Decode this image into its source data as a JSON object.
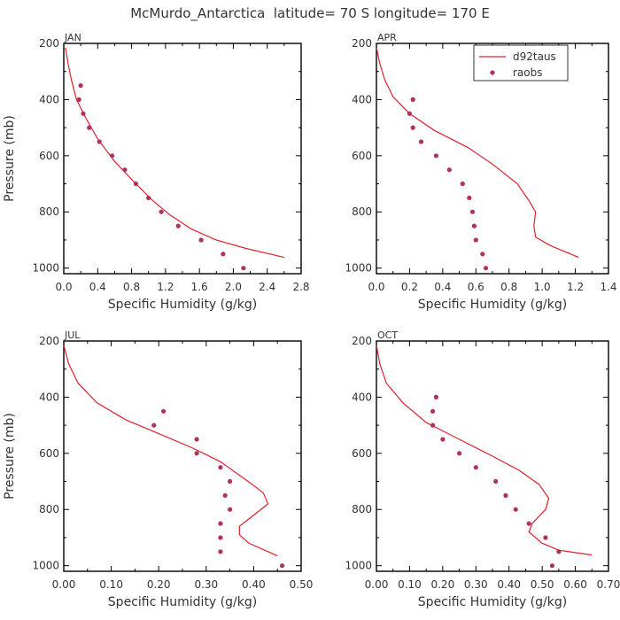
{
  "figure": {
    "title": "McMurdo_Antarctica  latitude= 70 S longitude= 170 E",
    "colors": {
      "model": "#e0202a",
      "obs": "#b03060",
      "frame": "#000000",
      "text": "#333333"
    }
  },
  "chart_data": [
    {
      "type": "line",
      "panel": "JAN",
      "title": "JAN",
      "xlabel": "Specific Humidity (g/kg)",
      "ylabel": "Pressure (mb)",
      "xlim": [
        0,
        2.8
      ],
      "ylim": [
        200,
        1020
      ],
      "y_inverted": true,
      "xticks": [
        "0.0",
        "0.4",
        "0.8",
        "1.2",
        "1.6",
        "2.0",
        "2.4",
        "2.8"
      ],
      "xtick_values": [
        0,
        0.4,
        0.8,
        1.2,
        1.6,
        2.0,
        2.4,
        2.8
      ],
      "yticks": [
        "200",
        "400",
        "600",
        "800",
        "1000"
      ],
      "ytick_values": [
        200,
        400,
        600,
        800,
        1000
      ],
      "legend": null,
      "series": [
        {
          "name": "d92taus",
          "kind": "line",
          "points": [
            [
              0.02,
              215
            ],
            [
              0.05,
              270
            ],
            [
              0.09,
              330
            ],
            [
              0.15,
              400
            ],
            [
              0.25,
              460
            ],
            [
              0.4,
              540
            ],
            [
              0.6,
              620
            ],
            [
              0.85,
              700
            ],
            [
              1.05,
              760
            ],
            [
              1.25,
              810
            ],
            [
              1.5,
              860
            ],
            [
              1.8,
              900
            ],
            [
              2.15,
              930
            ],
            [
              2.6,
              962
            ]
          ]
        },
        {
          "name": "raobs",
          "kind": "scatter",
          "points": [
            [
              0.2,
              350
            ],
            [
              0.18,
              400
            ],
            [
              0.23,
              450
            ],
            [
              0.3,
              500
            ],
            [
              0.42,
              550
            ],
            [
              0.57,
              600
            ],
            [
              0.72,
              650
            ],
            [
              0.85,
              700
            ],
            [
              1.0,
              750
            ],
            [
              1.15,
              800
            ],
            [
              1.35,
              850
            ],
            [
              1.62,
              900
            ],
            [
              1.88,
              950
            ],
            [
              2.12,
              1000
            ]
          ]
        }
      ]
    },
    {
      "type": "line",
      "panel": "APR",
      "title": "APR",
      "xlabel": "Specific Humidity (g/kg)",
      "ylabel": "",
      "xlim": [
        0,
        1.4
      ],
      "ylim": [
        200,
        1020
      ],
      "y_inverted": true,
      "xticks": [
        "0.0",
        "0.2",
        "0.4",
        "0.6",
        "0.8",
        "1.0",
        "1.2",
        "1.4"
      ],
      "xtick_values": [
        0,
        0.2,
        0.4,
        0.6,
        0.8,
        1.0,
        1.2,
        1.4
      ],
      "yticks": [
        "200",
        "400",
        "600",
        "800",
        "1000"
      ],
      "ytick_values": [
        200,
        400,
        600,
        800,
        1000
      ],
      "legend": {
        "placement": "top-right",
        "entries": [
          "d92taus",
          "raobs"
        ]
      },
      "series": [
        {
          "name": "d92taus",
          "kind": "line",
          "points": [
            [
              0.0,
              215
            ],
            [
              0.02,
              270
            ],
            [
              0.05,
              330
            ],
            [
              0.1,
              390
            ],
            [
              0.2,
              450
            ],
            [
              0.35,
              510
            ],
            [
              0.55,
              570
            ],
            [
              0.7,
              630
            ],
            [
              0.85,
              700
            ],
            [
              0.92,
              760
            ],
            [
              0.96,
              800
            ],
            [
              0.95,
              850
            ],
            [
              0.96,
              890
            ],
            [
              1.05,
              920
            ],
            [
              1.22,
              962
            ]
          ]
        },
        {
          "name": "raobs",
          "kind": "scatter",
          "points": [
            [
              0.22,
              400
            ],
            [
              0.2,
              450
            ],
            [
              0.22,
              500
            ],
            [
              0.27,
              550
            ],
            [
              0.36,
              600
            ],
            [
              0.44,
              650
            ],
            [
              0.52,
              700
            ],
            [
              0.56,
              750
            ],
            [
              0.58,
              800
            ],
            [
              0.59,
              850
            ],
            [
              0.6,
              900
            ],
            [
              0.64,
              950
            ],
            [
              0.66,
              1000
            ]
          ]
        }
      ]
    },
    {
      "type": "line",
      "panel": "JUL",
      "title": "JUL",
      "xlabel": "Specific Humidity (g/kg)",
      "ylabel": "Pressure (mb)",
      "xlim": [
        0,
        0.5
      ],
      "ylim": [
        200,
        1020
      ],
      "y_inverted": true,
      "xticks": [
        "0.00",
        "0.10",
        "0.20",
        "0.30",
        "0.40",
        "0.50"
      ],
      "xtick_values": [
        0,
        0.1,
        0.2,
        0.3,
        0.4,
        0.5
      ],
      "yticks": [
        "200",
        "400",
        "600",
        "800",
        "1000"
      ],
      "ytick_values": [
        200,
        400,
        600,
        800,
        1000
      ],
      "legend": null,
      "series": [
        {
          "name": "d92taus",
          "kind": "line",
          "points": [
            [
              0.0,
              215
            ],
            [
              0.01,
              280
            ],
            [
              0.03,
              350
            ],
            [
              0.07,
              420
            ],
            [
              0.13,
              480
            ],
            [
              0.2,
              530
            ],
            [
              0.27,
              580
            ],
            [
              0.33,
              630
            ],
            [
              0.38,
              690
            ],
            [
              0.42,
              740
            ],
            [
              0.43,
              780
            ],
            [
              0.4,
              820
            ],
            [
              0.37,
              860
            ],
            [
              0.37,
              890
            ],
            [
              0.39,
              920
            ],
            [
              0.43,
              950
            ],
            [
              0.45,
              965
            ]
          ]
        },
        {
          "name": "raobs",
          "kind": "scatter",
          "points": [
            [
              0.21,
              450
            ],
            [
              0.19,
              500
            ],
            [
              0.28,
              550
            ],
            [
              0.28,
              600
            ],
            [
              0.33,
              650
            ],
            [
              0.35,
              700
            ],
            [
              0.34,
              750
            ],
            [
              0.35,
              800
            ],
            [
              0.33,
              850
            ],
            [
              0.33,
              900
            ],
            [
              0.33,
              950
            ],
            [
              0.46,
              1000
            ]
          ]
        }
      ]
    },
    {
      "type": "line",
      "panel": "OCT",
      "title": "OCT",
      "xlabel": "Specific Humidity (g/kg)",
      "ylabel": "",
      "xlim": [
        0,
        0.7
      ],
      "ylim": [
        200,
        1020
      ],
      "y_inverted": true,
      "xticks": [
        "0.00",
        "0.10",
        "0.20",
        "0.30",
        "0.40",
        "0.50",
        "0.60",
        "0.70"
      ],
      "xtick_values": [
        0,
        0.1,
        0.2,
        0.3,
        0.4,
        0.5,
        0.6,
        0.7
      ],
      "yticks": [
        "200",
        "400",
        "600",
        "800",
        "1000"
      ],
      "ytick_values": [
        200,
        400,
        600,
        800,
        1000
      ],
      "legend": null,
      "series": [
        {
          "name": "d92taus",
          "kind": "line",
          "points": [
            [
              0.0,
              215
            ],
            [
              0.01,
              280
            ],
            [
              0.03,
              350
            ],
            [
              0.08,
              420
            ],
            [
              0.15,
              490
            ],
            [
              0.25,
              550
            ],
            [
              0.35,
              610
            ],
            [
              0.43,
              660
            ],
            [
              0.49,
              710
            ],
            [
              0.52,
              760
            ],
            [
              0.51,
              800
            ],
            [
              0.47,
              850
            ],
            [
              0.46,
              880
            ],
            [
              0.5,
              920
            ],
            [
              0.55,
              945
            ],
            [
              0.65,
              962
            ]
          ]
        },
        {
          "name": "raobs",
          "kind": "scatter",
          "points": [
            [
              0.18,
              400
            ],
            [
              0.17,
              450
            ],
            [
              0.17,
              500
            ],
            [
              0.2,
              550
            ],
            [
              0.25,
              600
            ],
            [
              0.3,
              650
            ],
            [
              0.36,
              700
            ],
            [
              0.39,
              750
            ],
            [
              0.42,
              800
            ],
            [
              0.46,
              850
            ],
            [
              0.51,
              900
            ],
            [
              0.55,
              950
            ],
            [
              0.53,
              1000
            ]
          ]
        }
      ]
    }
  ]
}
